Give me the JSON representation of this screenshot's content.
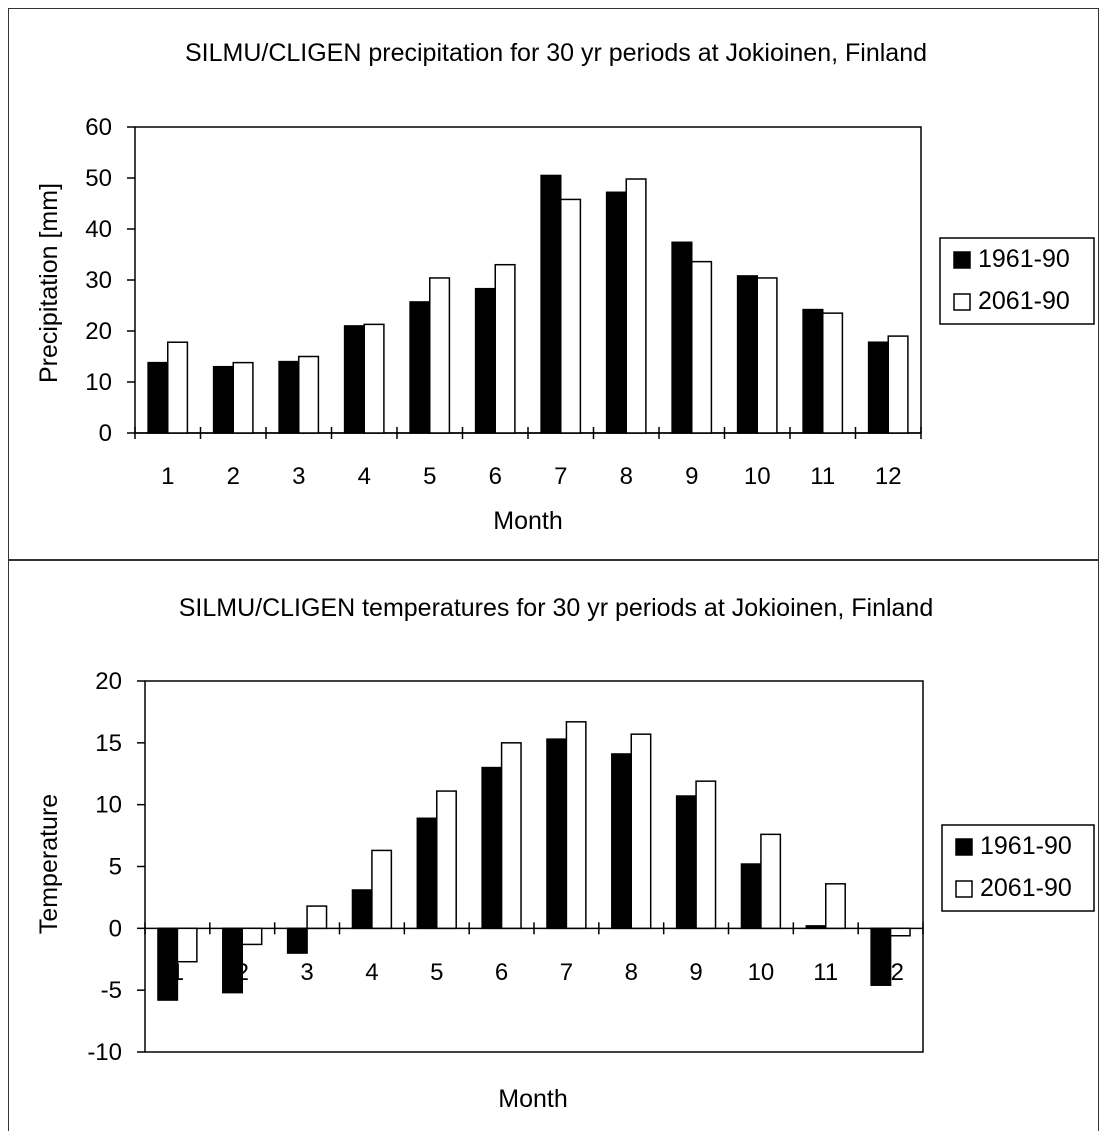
{
  "chart_data": [
    {
      "id": "precip",
      "type": "bar",
      "title": "SILMU/CLIGEN precipitation for 30 yr periods at Jokioinen, Finland",
      "xlabel": "Month",
      "ylabel": "Precipitation [mm]",
      "ylim": [
        0,
        60
      ],
      "yticks": [
        0,
        10,
        20,
        30,
        40,
        50,
        60
      ],
      "grid": false,
      "legend_position": "right",
      "categories": [
        "1",
        "2",
        "3",
        "4",
        "5",
        "6",
        "7",
        "8",
        "9",
        "10",
        "11",
        "12"
      ],
      "series": [
        {
          "name": "1961-90",
          "color": "#000000",
          "values": [
            13.8,
            13.0,
            14.0,
            21.0,
            25.7,
            28.3,
            50.5,
            47.2,
            37.4,
            30.8,
            24.2,
            17.8
          ]
        },
        {
          "name": "2061-90",
          "color": "#ffffff",
          "values": [
            17.8,
            13.8,
            15.0,
            21.3,
            30.4,
            33.0,
            45.8,
            49.8,
            33.6,
            30.4,
            23.5,
            19.0
          ]
        }
      ]
    },
    {
      "id": "temp",
      "type": "bar",
      "title": "SILMU/CLIGEN temperatures for 30 yr periods at Jokioinen, Finland",
      "xlabel": "Month",
      "ylabel": "Temperature",
      "ylim": [
        -10,
        20
      ],
      "yticks": [
        -10,
        -5,
        0,
        5,
        10,
        15,
        20
      ],
      "grid": false,
      "legend_position": "right",
      "categories": [
        "1",
        "2",
        "3",
        "4",
        "5",
        "6",
        "7",
        "8",
        "9",
        "10",
        "11",
        "12"
      ],
      "series": [
        {
          "name": "1961-90",
          "color": "#000000",
          "values": [
            -5.8,
            -5.2,
            -2.0,
            3.1,
            8.9,
            13.0,
            15.3,
            14.1,
            10.7,
            5.2,
            0.2,
            -4.6
          ]
        },
        {
          "name": "2061-90",
          "color": "#ffffff",
          "values": [
            -2.7,
            -1.3,
            1.8,
            6.3,
            11.1,
            15.0,
            16.7,
            15.7,
            11.9,
            7.6,
            3.6,
            -0.6
          ]
        }
      ]
    }
  ]
}
